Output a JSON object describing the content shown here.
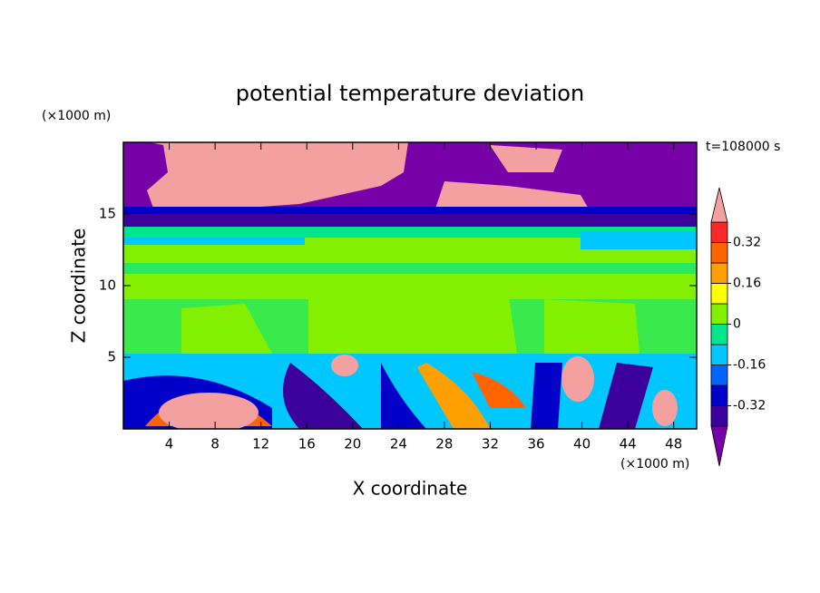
{
  "chart_data": {
    "type": "contour",
    "title": "potential temperature deviation",
    "x_label": "X coordinate",
    "y_label": "Z coordinate",
    "x_unit": "(×1000 m)",
    "y_unit": "(×1000 m)",
    "annotation": "t=108000 s",
    "xlim": [
      0,
      50
    ],
    "xticks": [
      4,
      8,
      12,
      16,
      20,
      24,
      28,
      32,
      36,
      40,
      44,
      48
    ],
    "ylim": [
      0,
      20
    ],
    "yticks": [
      5,
      10,
      15
    ],
    "colorbar": {
      "levels": [
        -0.4,
        -0.32,
        -0.24,
        -0.16,
        -0.08,
        0,
        0.08,
        0.16,
        0.24,
        0.32,
        0.4
      ],
      "colors": [
        "#3c009c",
        "#0000c8",
        "#0064ff",
        "#00c8ff",
        "#00e68c",
        "#82f000",
        "#ffff00",
        "#ffa000",
        "#ff6400",
        "#ff2828"
      ],
      "under_color": "#7800a8",
      "over_color": "#f5a0a0",
      "ticks": [
        -0.32,
        -0.16,
        0,
        0.16,
        0.32
      ]
    }
  }
}
